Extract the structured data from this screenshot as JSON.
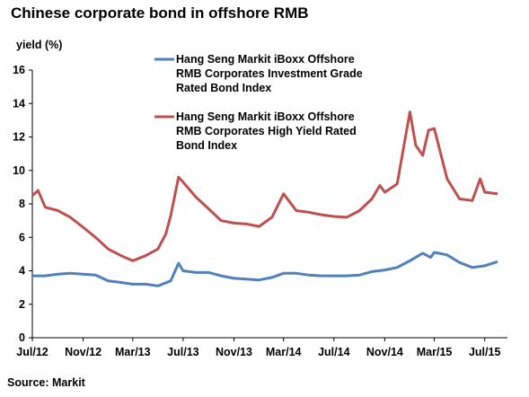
{
  "chart_data": {
    "type": "line",
    "title": "Chinese corporate bond in offshore RMB",
    "ylabel": "yield (%)",
    "xlabel": "",
    "source": "Source: Markit",
    "ylim": [
      0,
      16
    ],
    "yticks": [
      "0",
      "2",
      "4",
      "6",
      "8",
      "10",
      "12",
      "14",
      "16"
    ],
    "xticks": [
      {
        "label": "Jul/12",
        "x": "2012-07"
      },
      {
        "label": "Nov/12",
        "x": "2012-11"
      },
      {
        "label": "Mar/13",
        "x": "2013-03"
      },
      {
        "label": "Jul/13",
        "x": "2013-07"
      },
      {
        "label": "Nov/13",
        "x": "2013-11"
      },
      {
        "label": "Mar/14",
        "x": "2014-03"
      },
      {
        "label": "Jul/14",
        "x": "2014-07"
      },
      {
        "label": "Nov/14",
        "x": "2014-11"
      },
      {
        "label": "Mar/15",
        "x": "2015-03"
      },
      {
        "label": "Jul/15",
        "x": "2015-07"
      }
    ],
    "legend_position": "top-center",
    "grid": false,
    "series": [
      {
        "name": "Hang Seng Markit iBoxx Offshore RMB Corporates Investment Grade Rated Bond Index",
        "legend_lines": [
          "Hang Seng Markit iBoxx Offshore",
          "RMB Corporates Investment Grade",
          "Rated Bond Index"
        ],
        "color": "#4f81bd",
        "points": [
          {
            "x": "2012-07",
            "y": 3.7
          },
          {
            "x": "2012-08",
            "y": 3.7
          },
          {
            "x": "2012-09",
            "y": 3.8
          },
          {
            "x": "2012-10",
            "y": 3.85
          },
          {
            "x": "2012-11",
            "y": 3.8
          },
          {
            "x": "2012-12",
            "y": 3.75
          },
          {
            "x": "2013-01",
            "y": 3.4
          },
          {
            "x": "2013-02",
            "y": 3.3
          },
          {
            "x": "2013-03",
            "y": 3.2
          },
          {
            "x": "2013-04",
            "y": 3.2
          },
          {
            "x": "2013-05",
            "y": 3.1
          },
          {
            "x": "2013-06",
            "y": 3.4
          },
          {
            "x": "2013-06-20",
            "y": 4.45
          },
          {
            "x": "2013-07",
            "y": 4.0
          },
          {
            "x": "2013-08",
            "y": 3.9
          },
          {
            "x": "2013-09",
            "y": 3.9
          },
          {
            "x": "2013-10",
            "y": 3.7
          },
          {
            "x": "2013-11",
            "y": 3.55
          },
          {
            "x": "2013-12",
            "y": 3.5
          },
          {
            "x": "2014-01",
            "y": 3.45
          },
          {
            "x": "2014-02",
            "y": 3.6
          },
          {
            "x": "2014-03",
            "y": 3.85
          },
          {
            "x": "2014-04",
            "y": 3.85
          },
          {
            "x": "2014-05",
            "y": 3.75
          },
          {
            "x": "2014-06",
            "y": 3.7
          },
          {
            "x": "2014-07",
            "y": 3.7
          },
          {
            "x": "2014-08",
            "y": 3.7
          },
          {
            "x": "2014-09",
            "y": 3.75
          },
          {
            "x": "2014-10",
            "y": 3.95
          },
          {
            "x": "2014-11",
            "y": 4.05
          },
          {
            "x": "2014-12",
            "y": 4.2
          },
          {
            "x": "2015-01",
            "y": 4.6
          },
          {
            "x": "2015-02",
            "y": 5.05
          },
          {
            "x": "2015-02-20",
            "y": 4.8
          },
          {
            "x": "2015-03",
            "y": 5.1
          },
          {
            "x": "2015-04",
            "y": 4.95
          },
          {
            "x": "2015-05",
            "y": 4.5
          },
          {
            "x": "2015-06",
            "y": 4.2
          },
          {
            "x": "2015-07",
            "y": 4.3
          },
          {
            "x": "2015-08",
            "y": 4.55
          }
        ]
      },
      {
        "name": "Hang Seng Markit iBoxx Offshore RMB Corporates High Yield Rated Bond Index",
        "legend_lines": [
          "Hang Seng Markit iBoxx Offshore",
          "RMB Corporates High Yield Rated",
          "Bond Index"
        ],
        "color": "#c0504d",
        "points": [
          {
            "x": "2012-07",
            "y": 8.5
          },
          {
            "x": "2012-07-15",
            "y": 8.8
          },
          {
            "x": "2012-08",
            "y": 7.8
          },
          {
            "x": "2012-09",
            "y": 7.6
          },
          {
            "x": "2012-10",
            "y": 7.2
          },
          {
            "x": "2012-11",
            "y": 6.6
          },
          {
            "x": "2012-12",
            "y": 6.0
          },
          {
            "x": "2013-01",
            "y": 5.3
          },
          {
            "x": "2013-02",
            "y": 4.9
          },
          {
            "x": "2013-03",
            "y": 4.6
          },
          {
            "x": "2013-04",
            "y": 4.9
          },
          {
            "x": "2013-05",
            "y": 5.3
          },
          {
            "x": "2013-05-20",
            "y": 6.2
          },
          {
            "x": "2013-06",
            "y": 7.3
          },
          {
            "x": "2013-06-20",
            "y": 9.6
          },
          {
            "x": "2013-07",
            "y": 9.3
          },
          {
            "x": "2013-08",
            "y": 8.4
          },
          {
            "x": "2013-09",
            "y": 7.7
          },
          {
            "x": "2013-10",
            "y": 7.0
          },
          {
            "x": "2013-11",
            "y": 6.85
          },
          {
            "x": "2013-12",
            "y": 6.8
          },
          {
            "x": "2014-01",
            "y": 6.65
          },
          {
            "x": "2014-02",
            "y": 7.2
          },
          {
            "x": "2014-03",
            "y": 8.6
          },
          {
            "x": "2014-04",
            "y": 7.6
          },
          {
            "x": "2014-05",
            "y": 7.5
          },
          {
            "x": "2014-06",
            "y": 7.35
          },
          {
            "x": "2014-07",
            "y": 7.25
          },
          {
            "x": "2014-08",
            "y": 7.2
          },
          {
            "x": "2014-09",
            "y": 7.6
          },
          {
            "x": "2014-10",
            "y": 8.3
          },
          {
            "x": "2014-10-20",
            "y": 9.1
          },
          {
            "x": "2014-11",
            "y": 8.7
          },
          {
            "x": "2014-12",
            "y": 9.2
          },
          {
            "x": "2015-01",
            "y": 13.5
          },
          {
            "x": "2015-01-15",
            "y": 11.5
          },
          {
            "x": "2015-02",
            "y": 10.9
          },
          {
            "x": "2015-02-15",
            "y": 12.4
          },
          {
            "x": "2015-03",
            "y": 12.5
          },
          {
            "x": "2015-04",
            "y": 9.5
          },
          {
            "x": "2015-05",
            "y": 8.3
          },
          {
            "x": "2015-06",
            "y": 8.2
          },
          {
            "x": "2015-06-20",
            "y": 9.5
          },
          {
            "x": "2015-07",
            "y": 8.7
          },
          {
            "x": "2015-08",
            "y": 8.6
          }
        ]
      }
    ]
  }
}
